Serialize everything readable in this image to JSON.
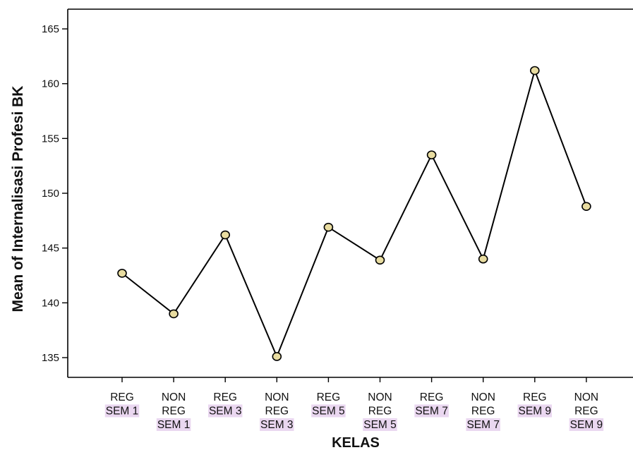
{
  "chart_data": {
    "type": "line",
    "title": "",
    "xlabel": "KELAS",
    "ylabel": "Mean of Internalisasi Profesi BK",
    "ylim": [
      133.2,
      166.8
    ],
    "yticks": [
      135,
      140,
      145,
      150,
      155,
      160,
      165
    ],
    "categories": [
      [
        "REG",
        "SEM 1"
      ],
      [
        "NON",
        "REG",
        "SEM 1"
      ],
      [
        "REG",
        "SEM 3"
      ],
      [
        "NON",
        "REG",
        "SEM 3"
      ],
      [
        "REG",
        "SEM 5"
      ],
      [
        "NON",
        "REG",
        "SEM 5"
      ],
      [
        "REG",
        "SEM 7"
      ],
      [
        "NON",
        "REG",
        "SEM 7"
      ],
      [
        "REG",
        "SEM 9"
      ],
      [
        "NON",
        "REG",
        "SEM 9"
      ]
    ],
    "values": [
      142.7,
      139.0,
      146.2,
      135.1,
      146.9,
      143.9,
      153.5,
      144.0,
      161.2,
      148.8
    ],
    "grid": false,
    "colors": {
      "line": "#000000",
      "marker_fill": "#e8dca0",
      "marker_stroke": "#000000",
      "highlight": "#ead7f0"
    }
  }
}
